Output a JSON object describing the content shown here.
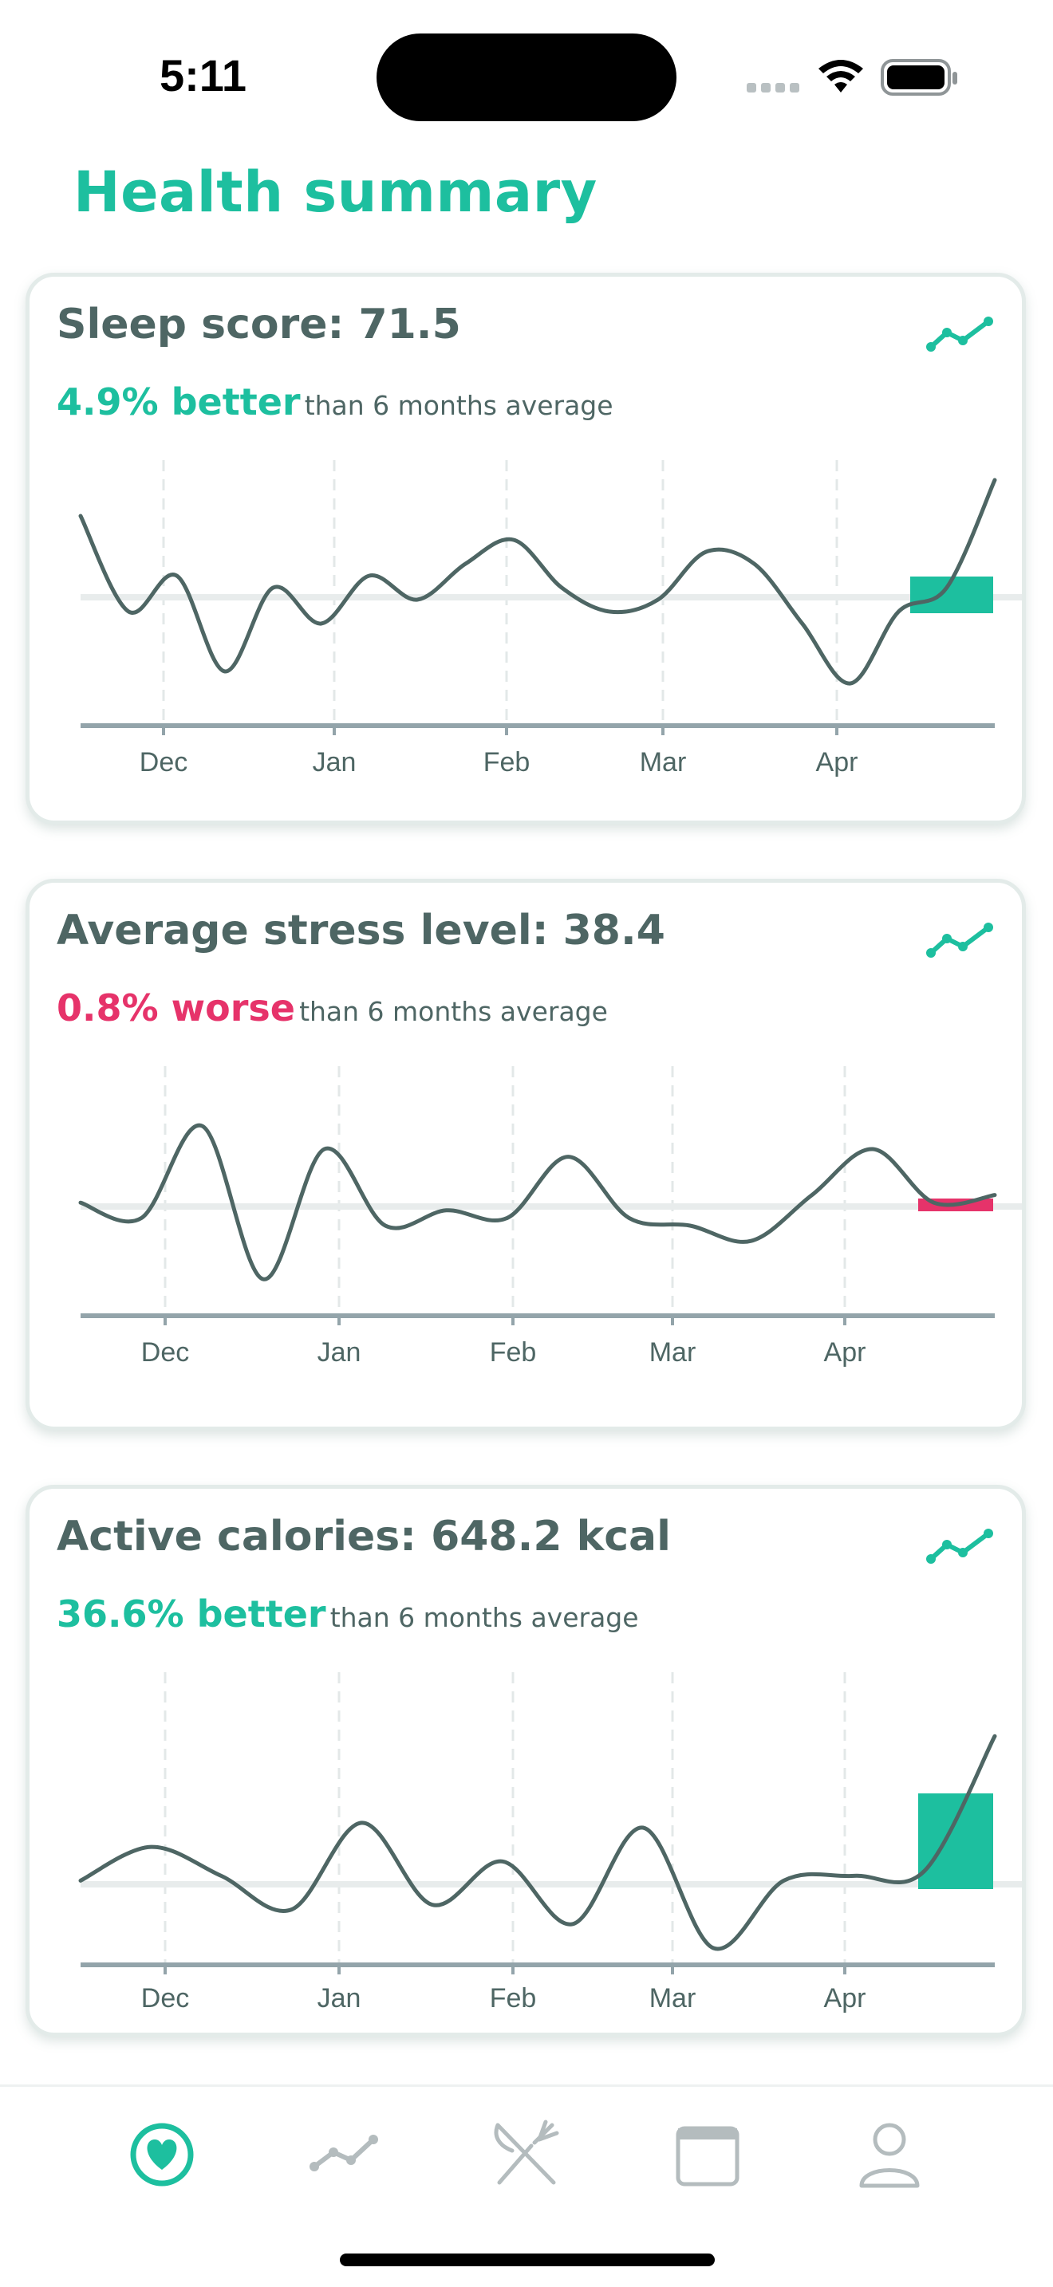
{
  "status_bar": {
    "time": "5:11"
  },
  "header": {
    "title": "Health summary"
  },
  "colors": {
    "accent": "#1dbf9f",
    "negative": "#e6336a",
    "text": "#4e6664",
    "line": "#4e6664",
    "axis": "#93a4aa",
    "baseline": "#e8ecec"
  },
  "cards": [
    {
      "title": "Sleep score: 71.5",
      "delta": "4.9% better",
      "delta_type": "better",
      "compare_text": "than 6 months average",
      "icon": "trend-line-icon"
    },
    {
      "title": "Average stress level: 38.4",
      "delta": "0.8% worse",
      "delta_type": "worse",
      "compare_text": "than 6 months average",
      "icon": "trend-line-icon"
    },
    {
      "title": "Active calories: 648.2 kcal",
      "delta": "36.6% better",
      "delta_type": "better",
      "compare_text": "than 6 months average",
      "icon": "trend-line-icon"
    }
  ],
  "chart_data": [
    {
      "type": "line",
      "title": "Sleep score: 71.5",
      "x_tick_labels": [
        "Dec",
        "Jan",
        "Feb",
        "Mar",
        "Apr"
      ],
      "baseline_label": "6 months average",
      "series": [
        {
          "name": "Sleep score",
          "values": [
            76,
            68,
            71,
            63,
            70,
            67,
            71,
            69,
            72,
            74,
            70,
            68,
            69,
            73,
            72,
            67,
            62,
            68,
            70,
            79
          ]
        }
      ],
      "current_value": 71.5,
      "change": "4.9% better"
    },
    {
      "type": "line",
      "title": "Average stress level: 38.4",
      "x_tick_labels": [
        "Dec",
        "Jan",
        "Feb",
        "Mar",
        "Apr"
      ],
      "baseline_label": "6 months average",
      "series": [
        {
          "name": "Average stress level",
          "values": [
            38,
            36,
            48,
            28,
            45,
            35,
            37,
            36,
            44,
            36,
            35,
            33,
            39,
            45,
            38,
            39
          ]
        }
      ],
      "current_value": 38.4,
      "change": "0.8% worse"
    },
    {
      "type": "line",
      "title": "Active calories: 648.2 kcal",
      "x_tick_labels": [
        "Dec",
        "Jan",
        "Feb",
        "Mar",
        "Apr"
      ],
      "baseline_label": "6 months average",
      "series": [
        {
          "name": "Active calories",
          "values": [
            470,
            505,
            475,
            440,
            530,
            445,
            490,
            425,
            525,
            400,
            470,
            475,
            480,
            620
          ]
        }
      ],
      "current_value": 648.2,
      "change": "36.6% better"
    }
  ],
  "tabbar": {
    "items": [
      {
        "name": "summary",
        "icon": "heart-icon",
        "active": true
      },
      {
        "name": "trends",
        "icon": "trend-line-icon",
        "active": false
      },
      {
        "name": "nutrition",
        "icon": "fork-knife-icon",
        "active": false
      },
      {
        "name": "calendar",
        "icon": "calendar-icon",
        "active": false
      },
      {
        "name": "profile",
        "icon": "person-icon",
        "active": false
      }
    ]
  }
}
